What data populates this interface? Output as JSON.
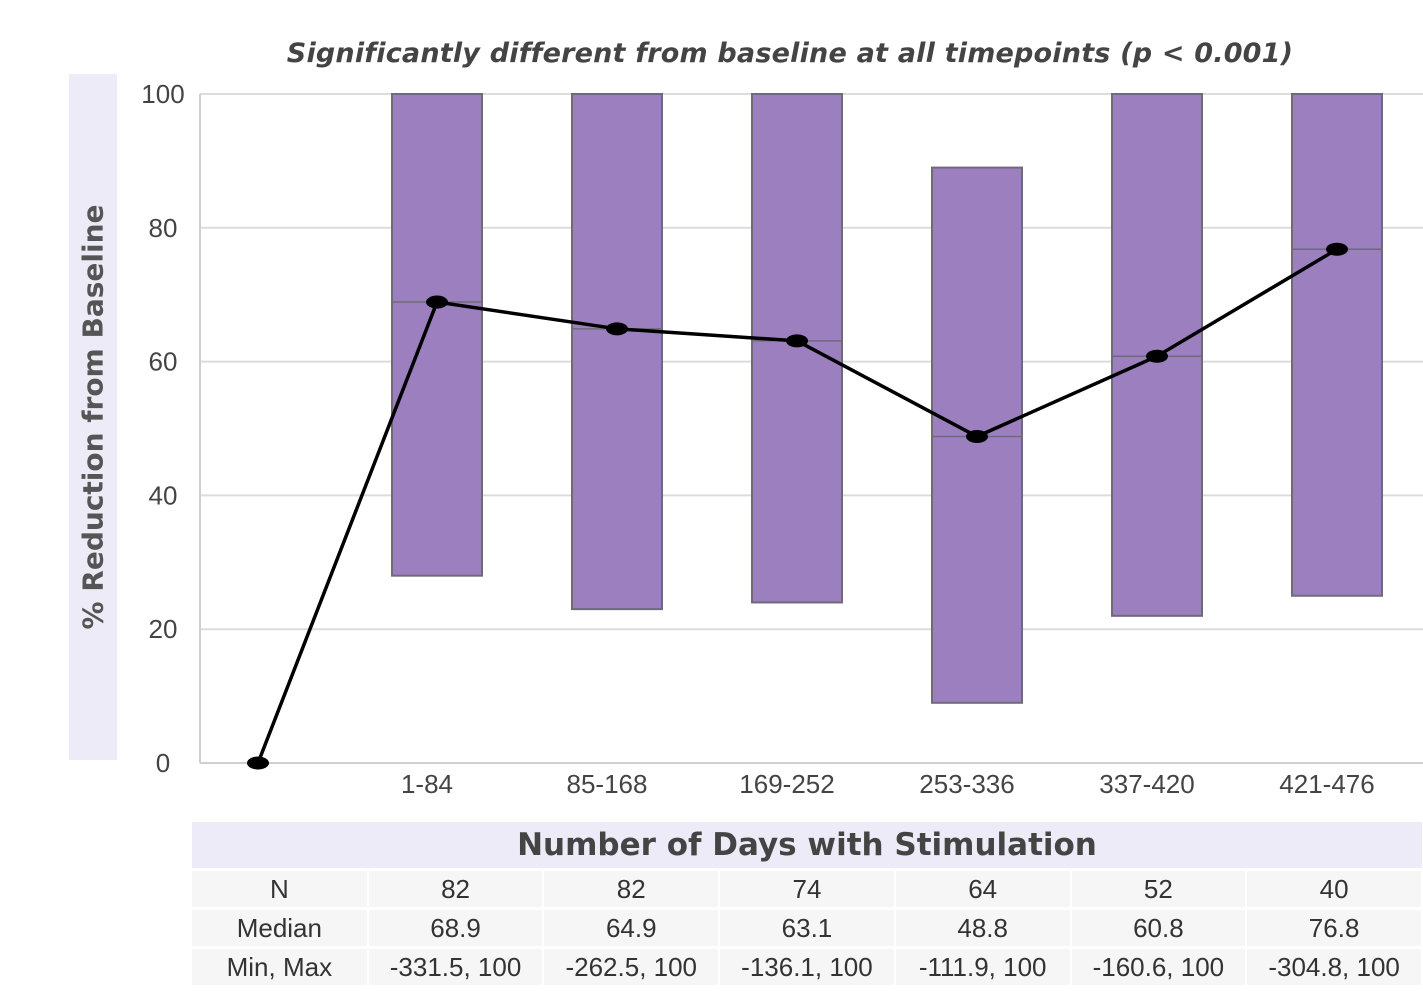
{
  "chart_data": {
    "type": "box",
    "title": "Significantly different from baseline at all timepoints (p < 0.001)",
    "ylabel": "% Reduction from Baseline",
    "xlabel": "Number of Days with Stimulation",
    "ylim": [
      0,
      100
    ],
    "yticks": [
      0,
      20,
      40,
      60,
      80,
      100
    ],
    "grid": true,
    "box_color": "#9b7fbf",
    "box_edge_color": "#6f6a7a",
    "line_color": "#000000",
    "baseline_point": 0,
    "categories": [
      "1-84",
      "85-168",
      "169-252",
      "253-336",
      "337-420",
      "421-476"
    ],
    "boxes": [
      {
        "low": 28,
        "high": 100,
        "median": 68.9
      },
      {
        "low": 23,
        "high": 100,
        "median": 64.9
      },
      {
        "low": 24,
        "high": 100,
        "median": 63.1
      },
      {
        "low": 9,
        "high": 89,
        "median": 48.8
      },
      {
        "low": 22,
        "high": 100,
        "median": 60.8
      },
      {
        "low": 25,
        "high": 100,
        "median": 76.8
      }
    ],
    "table": {
      "rows": [
        {
          "label": "N",
          "values": [
            "82",
            "82",
            "74",
            "64",
            "52",
            "40"
          ]
        },
        {
          "label": "Median",
          "values": [
            "68.9",
            "64.9",
            "63.1",
            "48.8",
            "60.8",
            "76.8"
          ]
        },
        {
          "label": "Min, Max",
          "values": [
            "-331.5, 100",
            "-262.5, 100",
            "-136.1, 100",
            "-111.9, 100",
            "-160.6, 100",
            "-304.8, 100"
          ]
        }
      ]
    }
  }
}
